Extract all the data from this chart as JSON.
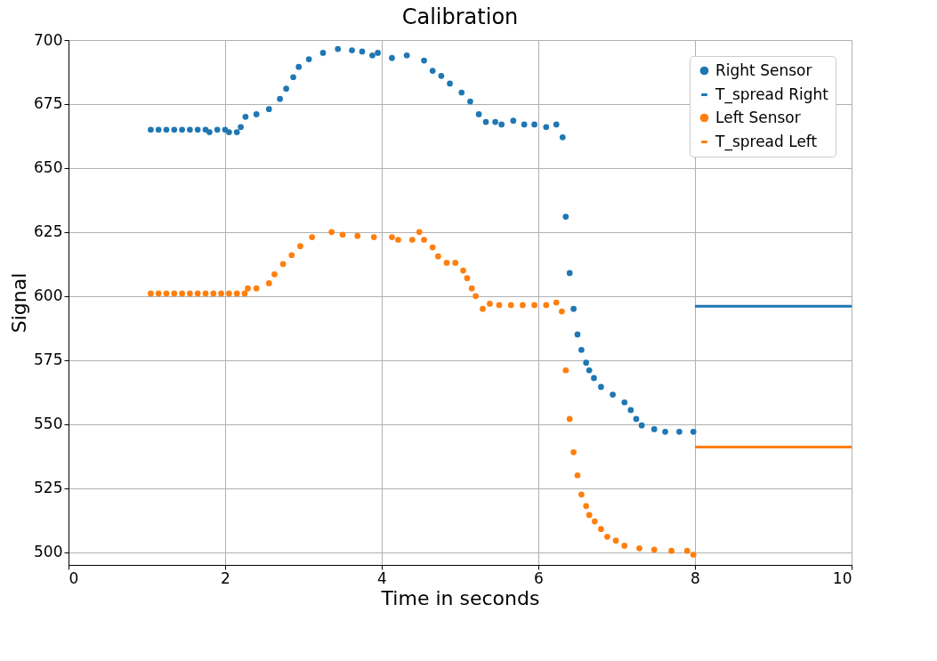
{
  "chart_data": {
    "type": "scatter",
    "title": "Calibration",
    "xlabel": "Time in seconds",
    "ylabel": "Signal",
    "xlim": [
      0,
      10
    ],
    "xticks": [
      0,
      2,
      4,
      6,
      8,
      10
    ],
    "ylim": [
      495,
      700
    ],
    "yticks": [
      500,
      525,
      550,
      575,
      600,
      625,
      650,
      675,
      700
    ],
    "grid": true,
    "legend": "top right",
    "marker": "circle",
    "series": [
      {
        "name": "Right Sensor",
        "color": "#1f77b4",
        "x": [
          1.05,
          1.15,
          1.25,
          1.35,
          1.45,
          1.55,
          1.65,
          1.75,
          1.8,
          1.9,
          2.0,
          2.05,
          2.15,
          2.2,
          2.26,
          2.4,
          2.56,
          2.7,
          2.78,
          2.87,
          2.94,
          3.07,
          3.25,
          3.44,
          3.62,
          3.75,
          3.88,
          3.95,
          4.13,
          4.32,
          4.54,
          4.65,
          4.76,
          4.87,
          5.02,
          5.13,
          5.24,
          5.33,
          5.45,
          5.53,
          5.68,
          5.82,
          5.95,
          6.1,
          6.23,
          6.31,
          6.35,
          6.4,
          6.45,
          6.5,
          6.55,
          6.61,
          6.65,
          6.71,
          6.8,
          6.95,
          7.1,
          7.18,
          7.25,
          7.32,
          7.48,
          7.62,
          7.8,
          7.98
        ],
        "values": [
          665,
          665,
          665,
          665,
          665,
          665,
          665,
          665,
          664,
          665,
          665,
          664,
          664,
          666,
          670,
          671,
          673,
          677,
          681,
          685.5,
          689.5,
          692.5,
          695,
          696.5,
          696,
          695.5,
          694,
          695,
          693,
          694,
          692,
          688,
          686,
          683,
          679.5,
          676,
          671,
          668,
          668,
          667,
          668.5,
          667,
          667,
          666,
          667,
          662,
          631,
          609,
          595,
          585,
          579,
          574,
          571,
          568,
          564.5,
          561.5,
          558.5,
          555.5,
          552,
          549.5,
          548,
          547,
          547,
          547
        ]
      },
      {
        "name": "T_spread Right",
        "type": "line",
        "marker": "none",
        "color": "#1f77b4",
        "x": [
          8,
          10
        ],
        "values": [
          596,
          596
        ]
      },
      {
        "name": "Left Sensor",
        "color": "#ff7f0e",
        "x": [
          1.05,
          1.15,
          1.25,
          1.35,
          1.45,
          1.55,
          1.65,
          1.75,
          1.85,
          1.95,
          2.05,
          2.15,
          2.25,
          2.29,
          2.4,
          2.56,
          2.63,
          2.74,
          2.85,
          2.96,
          3.11,
          3.36,
          3.5,
          3.69,
          3.9,
          4.13,
          4.21,
          4.39,
          4.48,
          4.54,
          4.65,
          4.72,
          4.83,
          4.94,
          5.04,
          5.09,
          5.15,
          5.2,
          5.29,
          5.38,
          5.5,
          5.65,
          5.8,
          5.95,
          6.1,
          6.23,
          6.3,
          6.35,
          6.4,
          6.45,
          6.5,
          6.55,
          6.61,
          6.65,
          6.72,
          6.8,
          6.88,
          6.99,
          7.1,
          7.29,
          7.48,
          7.7,
          7.9,
          7.98
        ],
        "values": [
          601,
          601,
          601,
          601,
          601,
          601,
          601,
          601,
          601,
          601,
          601,
          601,
          601,
          603,
          603,
          605,
          608.5,
          612.5,
          616,
          619.5,
          623,
          625,
          624,
          623.5,
          623,
          623,
          622,
          622,
          625,
          622,
          619,
          615.5,
          613,
          613,
          610,
          607,
          603,
          600,
          595,
          597,
          596.5,
          596.5,
          596.5,
          596.5,
          596.5,
          597.5,
          594,
          571,
          552,
          539,
          530,
          522.5,
          518,
          514.5,
          512,
          509,
          506,
          504.5,
          502.5,
          501.5,
          501,
          500.5,
          500.5,
          499
        ]
      },
      {
        "name": "T_spread Left",
        "type": "line",
        "marker": "none",
        "color": "#ff7f0e",
        "x": [
          8,
          10
        ],
        "values": [
          541,
          541
        ]
      }
    ]
  }
}
